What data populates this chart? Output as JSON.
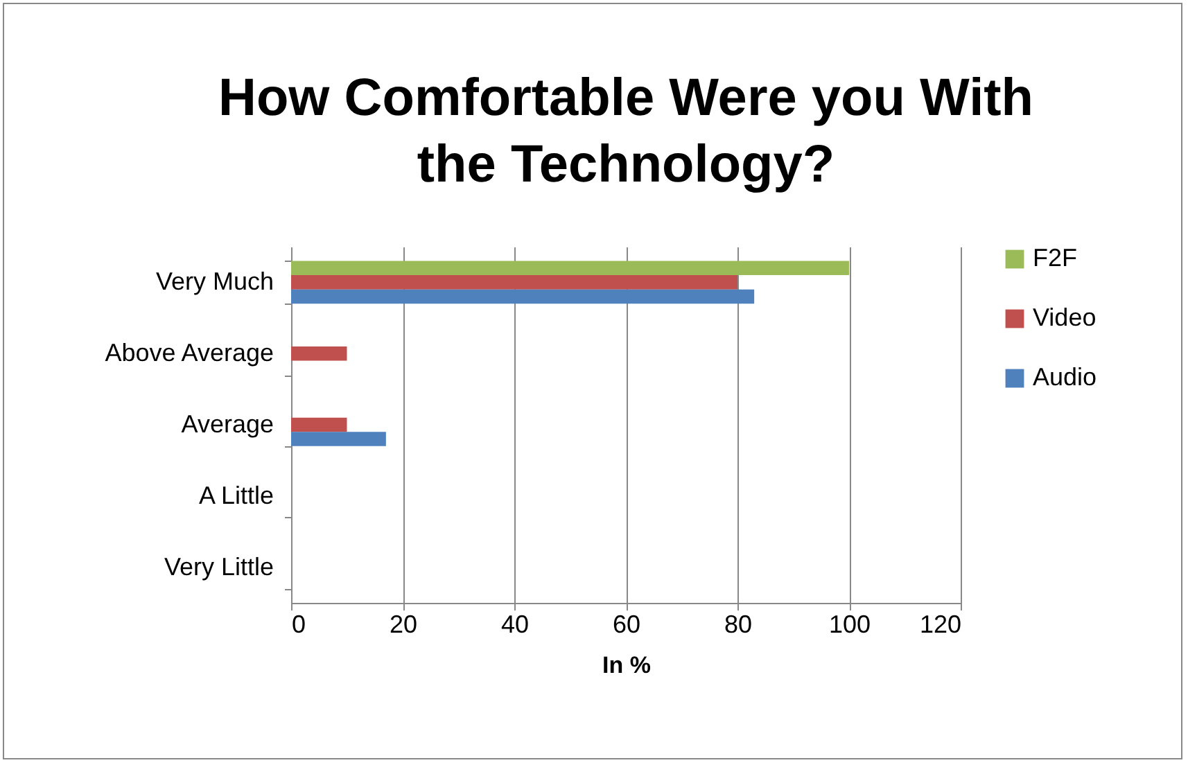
{
  "chart_data": {
    "type": "bar",
    "orientation": "horizontal",
    "title": "How Comfortable Were you With the Technology?",
    "xlabel": "In %",
    "categories": [
      "Very Much",
      "Above Average",
      "Average",
      "A Little",
      "Very Little"
    ],
    "series": [
      {
        "name": "F2F",
        "color": "#9bbb59",
        "values": [
          100,
          0,
          0,
          0,
          0
        ]
      },
      {
        "name": "Video",
        "color": "#c0504d",
        "values": [
          80,
          10,
          10,
          0,
          0
        ]
      },
      {
        "name": "Audio",
        "color": "#4f81bd",
        "values": [
          83,
          0,
          17,
          0,
          0
        ]
      }
    ],
    "xlim": [
      0,
      120
    ],
    "xticks": [
      0,
      20,
      40,
      60,
      80,
      100,
      120
    ],
    "grid": "x",
    "legend": "right"
  }
}
